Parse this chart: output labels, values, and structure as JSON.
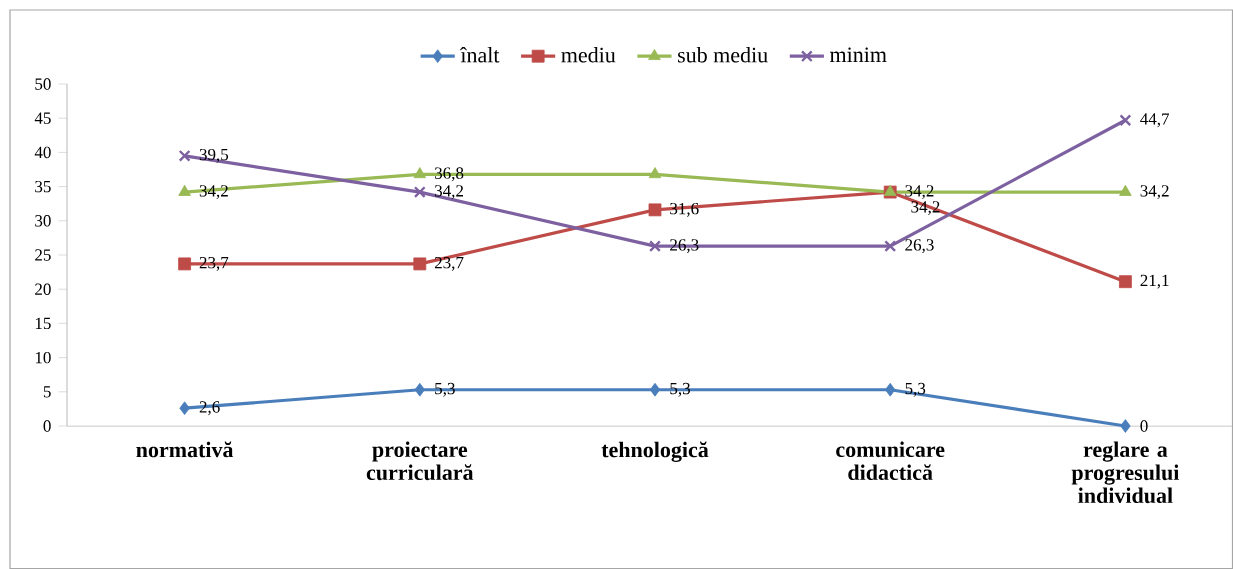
{
  "chart_data": {
    "type": "line",
    "categories": [
      "normativă",
      "proiectare curriculară",
      "tehnologică",
      "comunicare didactică",
      "reglare a progresului individual"
    ],
    "series": [
      {
        "name": "înalt",
        "color": "#4a7ebb",
        "marker": "diamond",
        "values": [
          2.6,
          5.3,
          5.3,
          5.3,
          0
        ],
        "value_labels": [
          "2,6",
          "5,3",
          "5,3",
          "5,3",
          "0"
        ]
      },
      {
        "name": "mediu",
        "color": "#be4b48",
        "marker": "square",
        "values": [
          23.7,
          23.7,
          31.6,
          34.2,
          21.1
        ],
        "value_labels": [
          "23,7",
          "23,7",
          "31,6",
          "34,2",
          "21,1"
        ]
      },
      {
        "name": "sub mediu",
        "color": "#98b954",
        "marker": "triangle",
        "values": [
          34.2,
          36.8,
          36.8,
          34.2,
          34.2
        ],
        "value_labels": [
          "34,2",
          "36,8",
          null,
          "34,2",
          "34,2"
        ]
      },
      {
        "name": "minim",
        "color": "#7d60a0",
        "marker": "cross",
        "values": [
          39.5,
          34.2,
          26.3,
          26.3,
          44.7
        ],
        "value_labels": [
          "39,5",
          "34,2",
          "26,3",
          "26,3",
          "44,7"
        ]
      }
    ],
    "ylim": [
      0,
      50
    ],
    "yticks": [
      0,
      5,
      10,
      15,
      20,
      25,
      30,
      35,
      40,
      45,
      50
    ],
    "legend": "top",
    "grid": false
  }
}
